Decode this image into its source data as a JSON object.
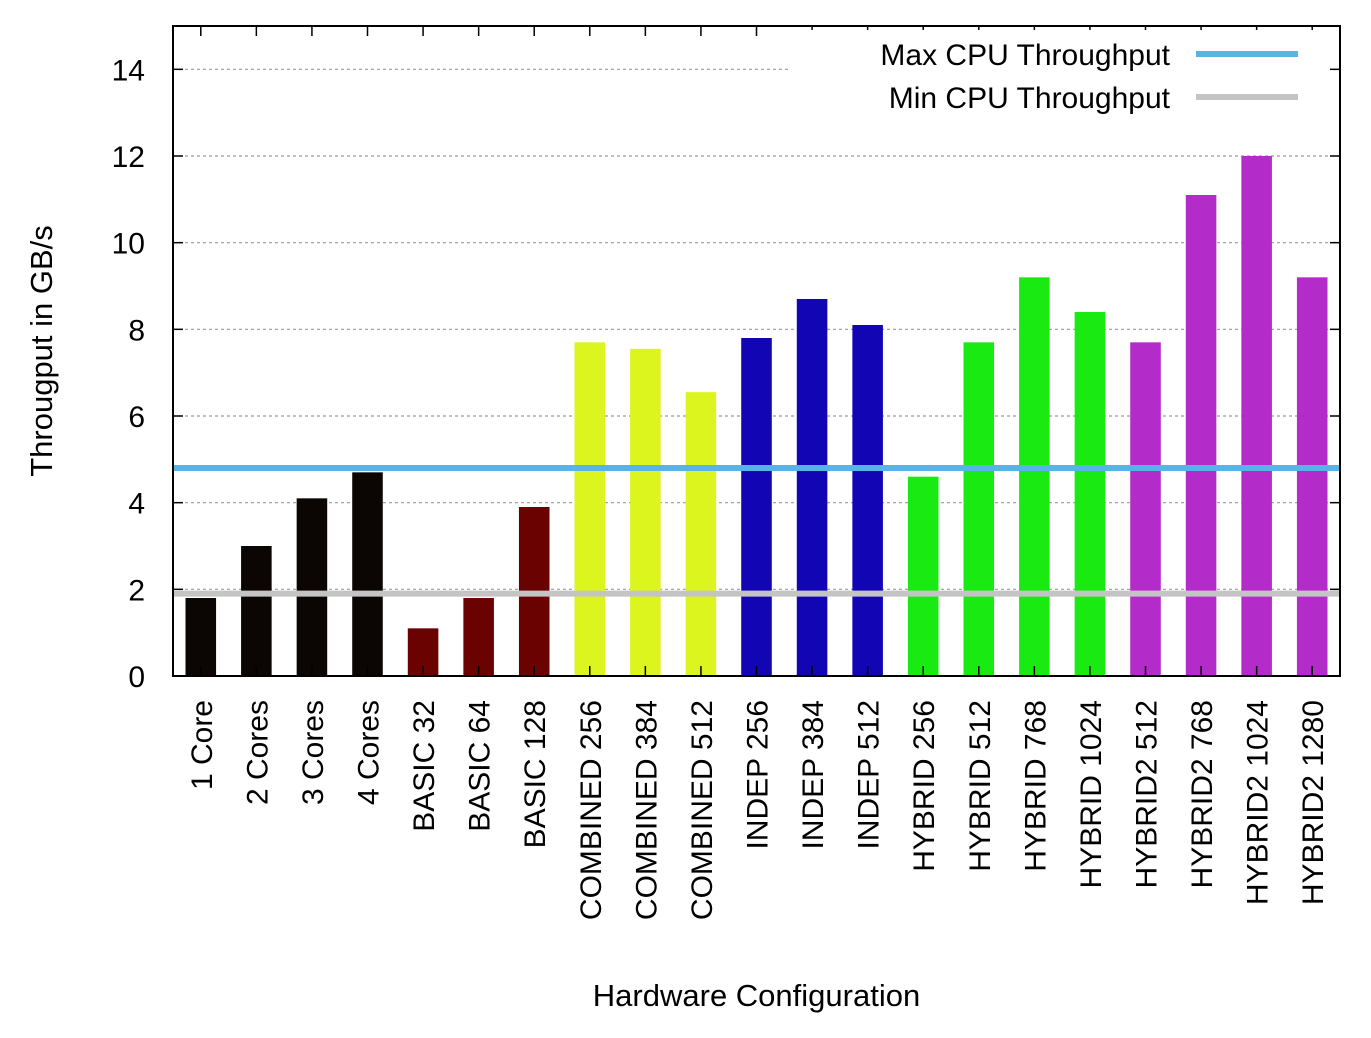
{
  "chart_data": {
    "type": "bar",
    "title": "",
    "xlabel": "Hardware Configuration",
    "ylabel": "Througput in GB/s",
    "ylim": [
      0,
      15
    ],
    "yticks": [
      0,
      2,
      4,
      6,
      8,
      10,
      12,
      14
    ],
    "grid": true,
    "legend_position": "top-right",
    "categories": [
      "1 Core",
      "2 Cores",
      "3 Cores",
      "4 Cores",
      "BASIC 32",
      "BASIC 64",
      "BASIC 128",
      "COMBINED 256",
      "COMBINED 384",
      "COMBINED 512",
      "INDEP 256",
      "INDEP 384",
      "INDEP 512",
      "HYBRID 256",
      "HYBRID 512",
      "HYBRID 768",
      "HYBRID 1024",
      "HYBRID2 512",
      "HYBRID2 768",
      "HYBRID2 1024",
      "HYBRID2 1280"
    ],
    "values": [
      1.8,
      3.0,
      4.1,
      4.7,
      1.1,
      1.8,
      3.9,
      7.7,
      7.55,
      6.55,
      7.8,
      8.7,
      8.1,
      4.6,
      7.7,
      9.2,
      8.4,
      7.7,
      11.1,
      12.0,
      9.2
    ],
    "bar_colors": [
      "#0b0604",
      "#0b0604",
      "#0b0604",
      "#0b0604",
      "#6b0202",
      "#6b0202",
      "#6b0202",
      "#dcf51f",
      "#dcf51f",
      "#dcf51f",
      "#1206b4",
      "#1206b4",
      "#1206b4",
      "#19ea11",
      "#19ea11",
      "#19ea11",
      "#19ea11",
      "#b32bc9",
      "#b32bc9",
      "#b32bc9",
      "#b32bc9"
    ],
    "reference_lines": [
      {
        "name": "Max CPU Throughput",
        "value": 4.8,
        "color": "#56b4e9"
      },
      {
        "name": "Min CPU Throughput",
        "value": 1.9,
        "color": "#c4c4c4"
      }
    ]
  }
}
